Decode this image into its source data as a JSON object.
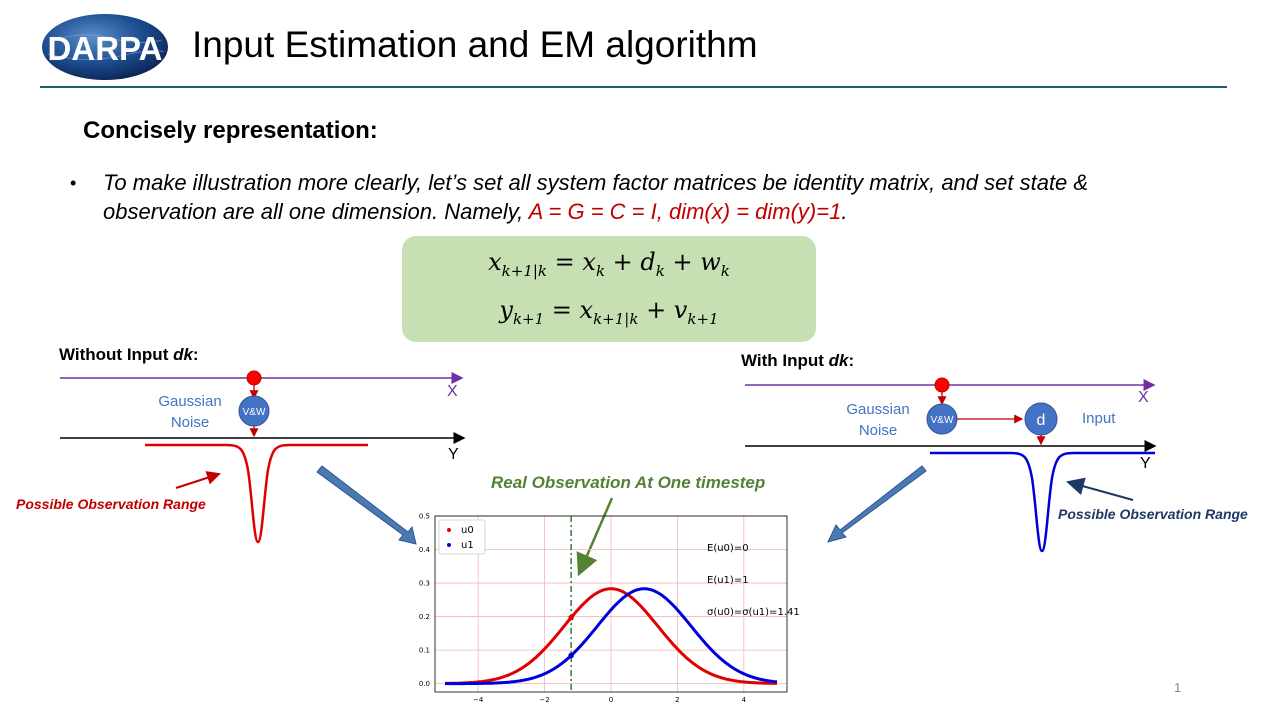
{
  "slide": {
    "logo_text": "DARPA",
    "title": "Input Estimation and EM algorithm",
    "section_heading": "Concisely representation:",
    "bullet_marker": "•",
    "bullet_text": "To make illustration more clearly, let’s set all system factor matrices be identity matrix, and set state & observation are all one dimension.  Namely, ",
    "bullet_highlight": "A = G = C  = I, dim(x) = dim(y)=1",
    "bullet_end": ".",
    "equation_1": "xk+1|k = xk + dk + wk",
    "equation_2": "yk+1 = xk+1|k + vk+1",
    "page_number": "1"
  },
  "left_panel": {
    "heading_prefix": "Without Input ",
    "heading_var": "dk",
    "heading_suffix": ":",
    "noise_line1": "Gaussian",
    "noise_line2": "Noise",
    "node_label": "V&W",
    "x_label": "X",
    "y_label": "Y",
    "range_label": "Possible Observation Range"
  },
  "right_panel": {
    "heading_prefix": "With Input ",
    "heading_var": "dk",
    "heading_suffix": ":",
    "noise_line1": "Gaussian",
    "noise_line2": "Noise",
    "node_label": "V&W",
    "input_node_label": "d",
    "input_label": "Input",
    "x_label": "X",
    "y_label": "Y",
    "range_label": "Possible Observation Range"
  },
  "callout": {
    "real_observation": "Real Observation At One timestep"
  },
  "colors": {
    "title_rule": "#1e5e6e",
    "equation_box": "#c6e0b4",
    "highlight_red": "#c00000",
    "axis_purple": "#7030a0",
    "node_blue": "#4472c4",
    "arrow_blue": "#4a7ab0",
    "callout_green": "#548235"
  },
  "chart_data": {
    "type": "line",
    "series": [
      {
        "name": "u0",
        "color": "#e00000",
        "mean": 0,
        "sd": 1.41,
        "x_range": [
          -5,
          5
        ]
      },
      {
        "name": "u1",
        "color": "#0000dd",
        "mean": 1,
        "sd": 1.41,
        "x_range": [
          -5,
          5
        ]
      }
    ],
    "xlim": [
      -5.3,
      5.3
    ],
    "ylim": [
      -0.025,
      0.5
    ],
    "xticks": [
      -4,
      -2,
      0,
      2,
      4
    ],
    "yticks": [
      0.0,
      0.1,
      0.2,
      0.3,
      0.4,
      0.5
    ],
    "xtick_labels": [
      "−4",
      "−2",
      "0",
      "2",
      "4"
    ],
    "ytick_labels": [
      "0.0",
      "0.1",
      "0.2",
      "0.3",
      "0.4",
      "0.5"
    ],
    "grid": true,
    "legend_position": "top-left",
    "observation_x": -1.2,
    "annotations": [
      "E(u0)=0",
      "E(u1)=1",
      "σ(u0)=σ(u1)=1.41"
    ]
  }
}
